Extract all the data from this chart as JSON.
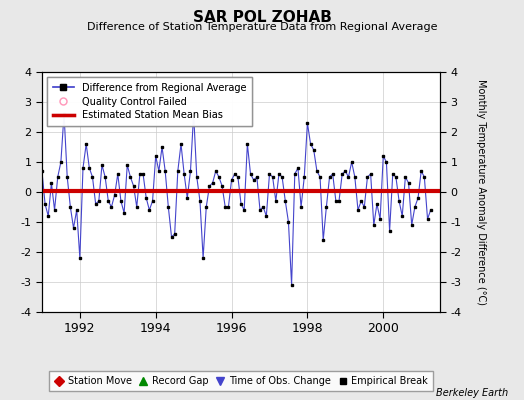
{
  "title": "SAR POL ZOHAB",
  "subtitle": "Difference of Station Temperature Data from Regional Average",
  "ylabel_right": "Monthly Temperature Anomaly Difference (°C)",
  "bias": 0.05,
  "xlim": [
    1991.0,
    2001.5
  ],
  "ylim": [
    -4,
    4
  ],
  "yticks": [
    -4,
    -3,
    -2,
    -1,
    0,
    1,
    2,
    3,
    4
  ],
  "xticks": [
    1992,
    1994,
    1996,
    1998,
    2000
  ],
  "background_color": "#e8e8e8",
  "plot_bg_color": "#ffffff",
  "line_color": "#4444cc",
  "marker_color": "#000000",
  "bias_color": "#cc0000",
  "watermark": "Berkeley Earth",
  "time_data": [
    1991.0,
    1991.083,
    1991.167,
    1991.25,
    1991.333,
    1991.417,
    1991.5,
    1991.583,
    1991.667,
    1991.75,
    1991.833,
    1991.917,
    1992.0,
    1992.083,
    1992.167,
    1992.25,
    1992.333,
    1992.417,
    1992.5,
    1992.583,
    1992.667,
    1992.75,
    1992.833,
    1992.917,
    1993.0,
    1993.083,
    1993.167,
    1993.25,
    1993.333,
    1993.417,
    1993.5,
    1993.583,
    1993.667,
    1993.75,
    1993.833,
    1993.917,
    1994.0,
    1994.083,
    1994.167,
    1994.25,
    1994.333,
    1994.417,
    1994.5,
    1994.583,
    1994.667,
    1994.75,
    1994.833,
    1994.917,
    1995.0,
    1995.083,
    1995.167,
    1995.25,
    1995.333,
    1995.417,
    1995.5,
    1995.583,
    1995.667,
    1995.75,
    1995.833,
    1995.917,
    1996.0,
    1996.083,
    1996.167,
    1996.25,
    1996.333,
    1996.417,
    1996.5,
    1996.583,
    1996.667,
    1996.75,
    1996.833,
    1996.917,
    1997.0,
    1997.083,
    1997.167,
    1997.25,
    1997.333,
    1997.417,
    1997.5,
    1997.583,
    1997.667,
    1997.75,
    1997.833,
    1997.917,
    1998.0,
    1998.083,
    1998.167,
    1998.25,
    1998.333,
    1998.417,
    1998.5,
    1998.583,
    1998.667,
    1998.75,
    1998.833,
    1998.917,
    1999.0,
    1999.083,
    1999.167,
    1999.25,
    1999.333,
    1999.417,
    1999.5,
    1999.583,
    1999.667,
    1999.75,
    1999.833,
    1999.917,
    2000.0,
    2000.083,
    2000.167,
    2000.25,
    2000.333,
    2000.417,
    2000.5,
    2000.583,
    2000.667,
    2000.75,
    2000.833,
    2000.917,
    2001.0,
    2001.083,
    2001.167,
    2001.25
  ],
  "values": [
    0.7,
    -0.4,
    -0.8,
    0.3,
    -0.6,
    0.5,
    1.0,
    2.6,
    0.5,
    -0.5,
    -1.2,
    -0.6,
    -2.2,
    0.8,
    1.6,
    0.8,
    0.5,
    -0.4,
    -0.3,
    0.9,
    0.5,
    -0.3,
    -0.5,
    -0.1,
    0.6,
    -0.3,
    -0.7,
    0.9,
    0.5,
    0.2,
    -0.5,
    0.6,
    0.6,
    -0.2,
    -0.6,
    -0.3,
    1.2,
    0.7,
    1.5,
    0.7,
    -0.5,
    -1.5,
    -1.4,
    0.7,
    1.6,
    0.6,
    -0.2,
    0.7,
    2.6,
    0.5,
    -0.3,
    -2.2,
    -0.5,
    0.2,
    0.3,
    0.7,
    0.5,
    0.2,
    -0.5,
    -0.5,
    0.4,
    0.6,
    0.5,
    -0.4,
    -0.6,
    1.6,
    0.6,
    0.4,
    0.5,
    -0.6,
    -0.5,
    -0.8,
    0.6,
    0.5,
    -0.3,
    0.6,
    0.5,
    -0.3,
    -1.0,
    -3.1,
    0.6,
    0.8,
    -0.5,
    0.5,
    2.3,
    1.6,
    1.4,
    0.7,
    0.5,
    -1.6,
    -0.5,
    0.5,
    0.6,
    -0.3,
    -0.3,
    0.6,
    0.7,
    0.5,
    1.0,
    0.5,
    -0.6,
    -0.3,
    -0.5,
    0.5,
    0.6,
    -1.1,
    -0.4,
    -0.9,
    1.2,
    1.0,
    -1.3,
    0.6,
    0.5,
    -0.3,
    -0.8,
    0.5,
    0.3,
    -1.1,
    -0.5,
    -0.2,
    0.7,
    0.5,
    -0.9,
    -0.6
  ]
}
